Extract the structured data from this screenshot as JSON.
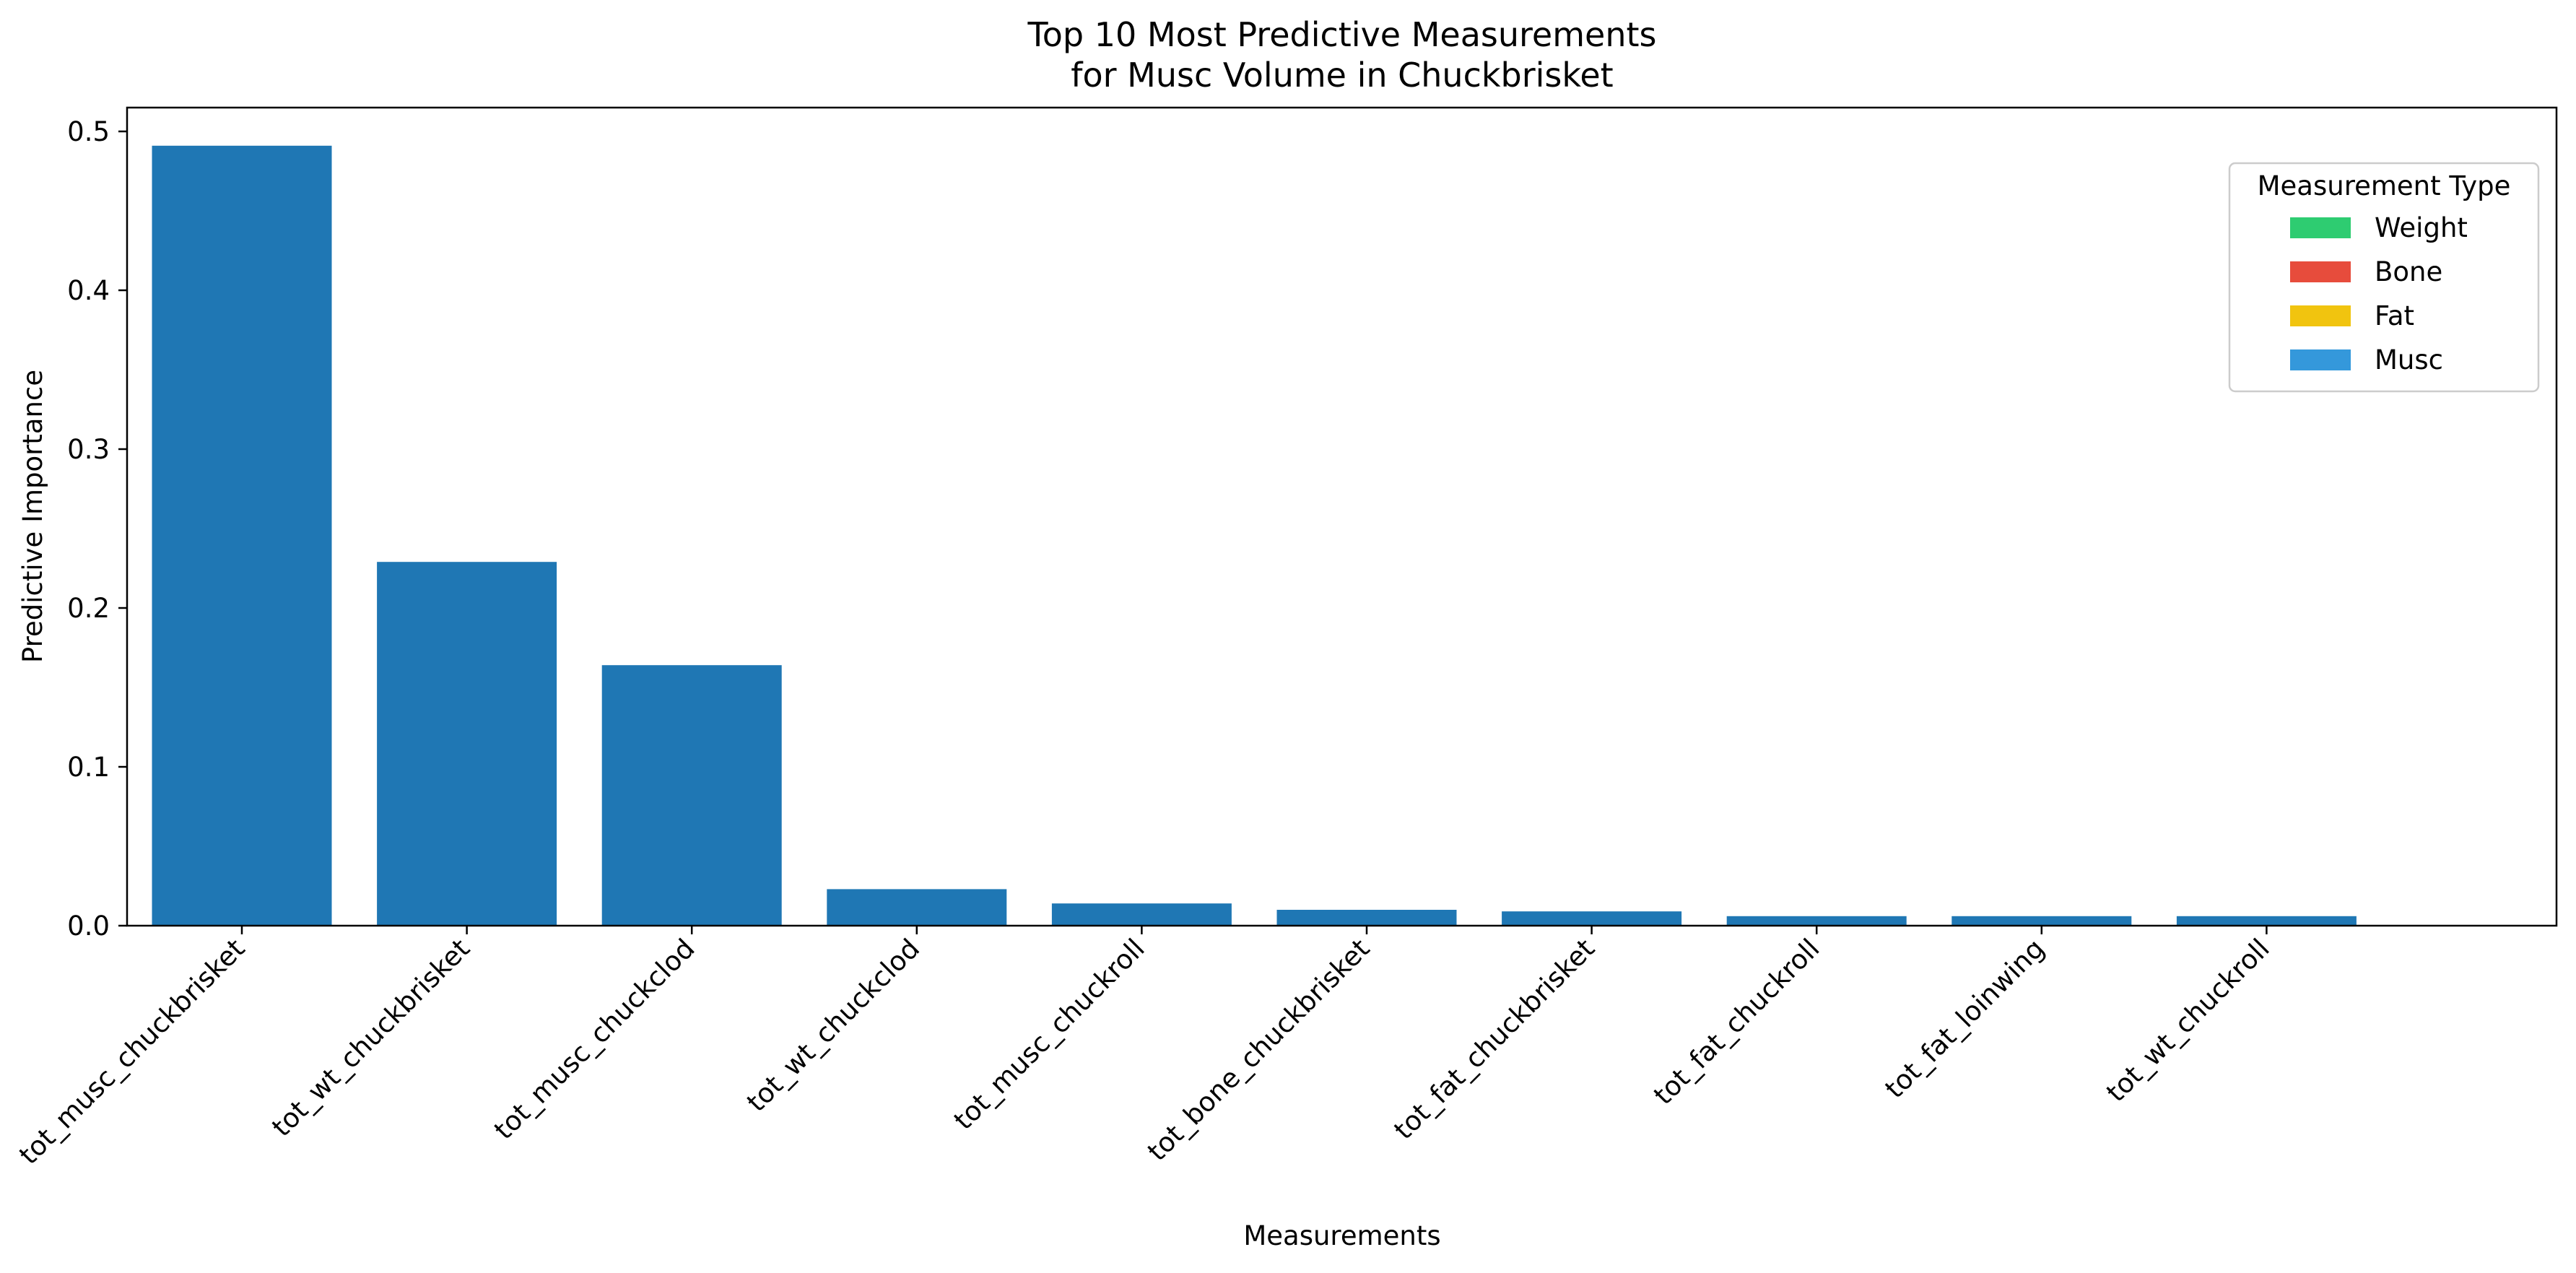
{
  "chart_data": {
    "type": "bar",
    "title_lines": [
      "Top 10 Most Predictive Measurements",
      "for Musc Volume in Chuckbrisket"
    ],
    "xlabel": "Measurements",
    "ylabel": "Predictive Importance",
    "ylim": [
      0,
      0.515
    ],
    "yticks": [
      0.0,
      0.1,
      0.2,
      0.3,
      0.4,
      0.5
    ],
    "ytick_labels": [
      "0.0",
      "0.1",
      "0.2",
      "0.3",
      "0.4",
      "0.5"
    ],
    "grid": false,
    "bar_color": "#1f77b4",
    "categories": [
      "tot_musc_chuckbrisket",
      "tot_wt_chuckbrisket",
      "tot_musc_chuckclod",
      "tot_wt_chuckclod",
      "tot_musc_chuckroll",
      "tot_bone_chuckbrisket",
      "tot_fat_chuckbrisket",
      "tot_fat_chuckroll",
      "tot_fat_loinwing",
      "tot_wt_chuckroll"
    ],
    "values": [
      0.491,
      0.229,
      0.164,
      0.023,
      0.014,
      0.01,
      0.009,
      0.006,
      0.006,
      0.006
    ],
    "legend": {
      "title": "Measurement Type",
      "position": "upper-right",
      "entries": [
        {
          "label": "Weight",
          "color": "#2ecc71"
        },
        {
          "label": "Bone",
          "color": "#e74c3c"
        },
        {
          "label": "Fat",
          "color": "#f1c40f"
        },
        {
          "label": "Musc",
          "color": "#3498db"
        }
      ]
    }
  }
}
